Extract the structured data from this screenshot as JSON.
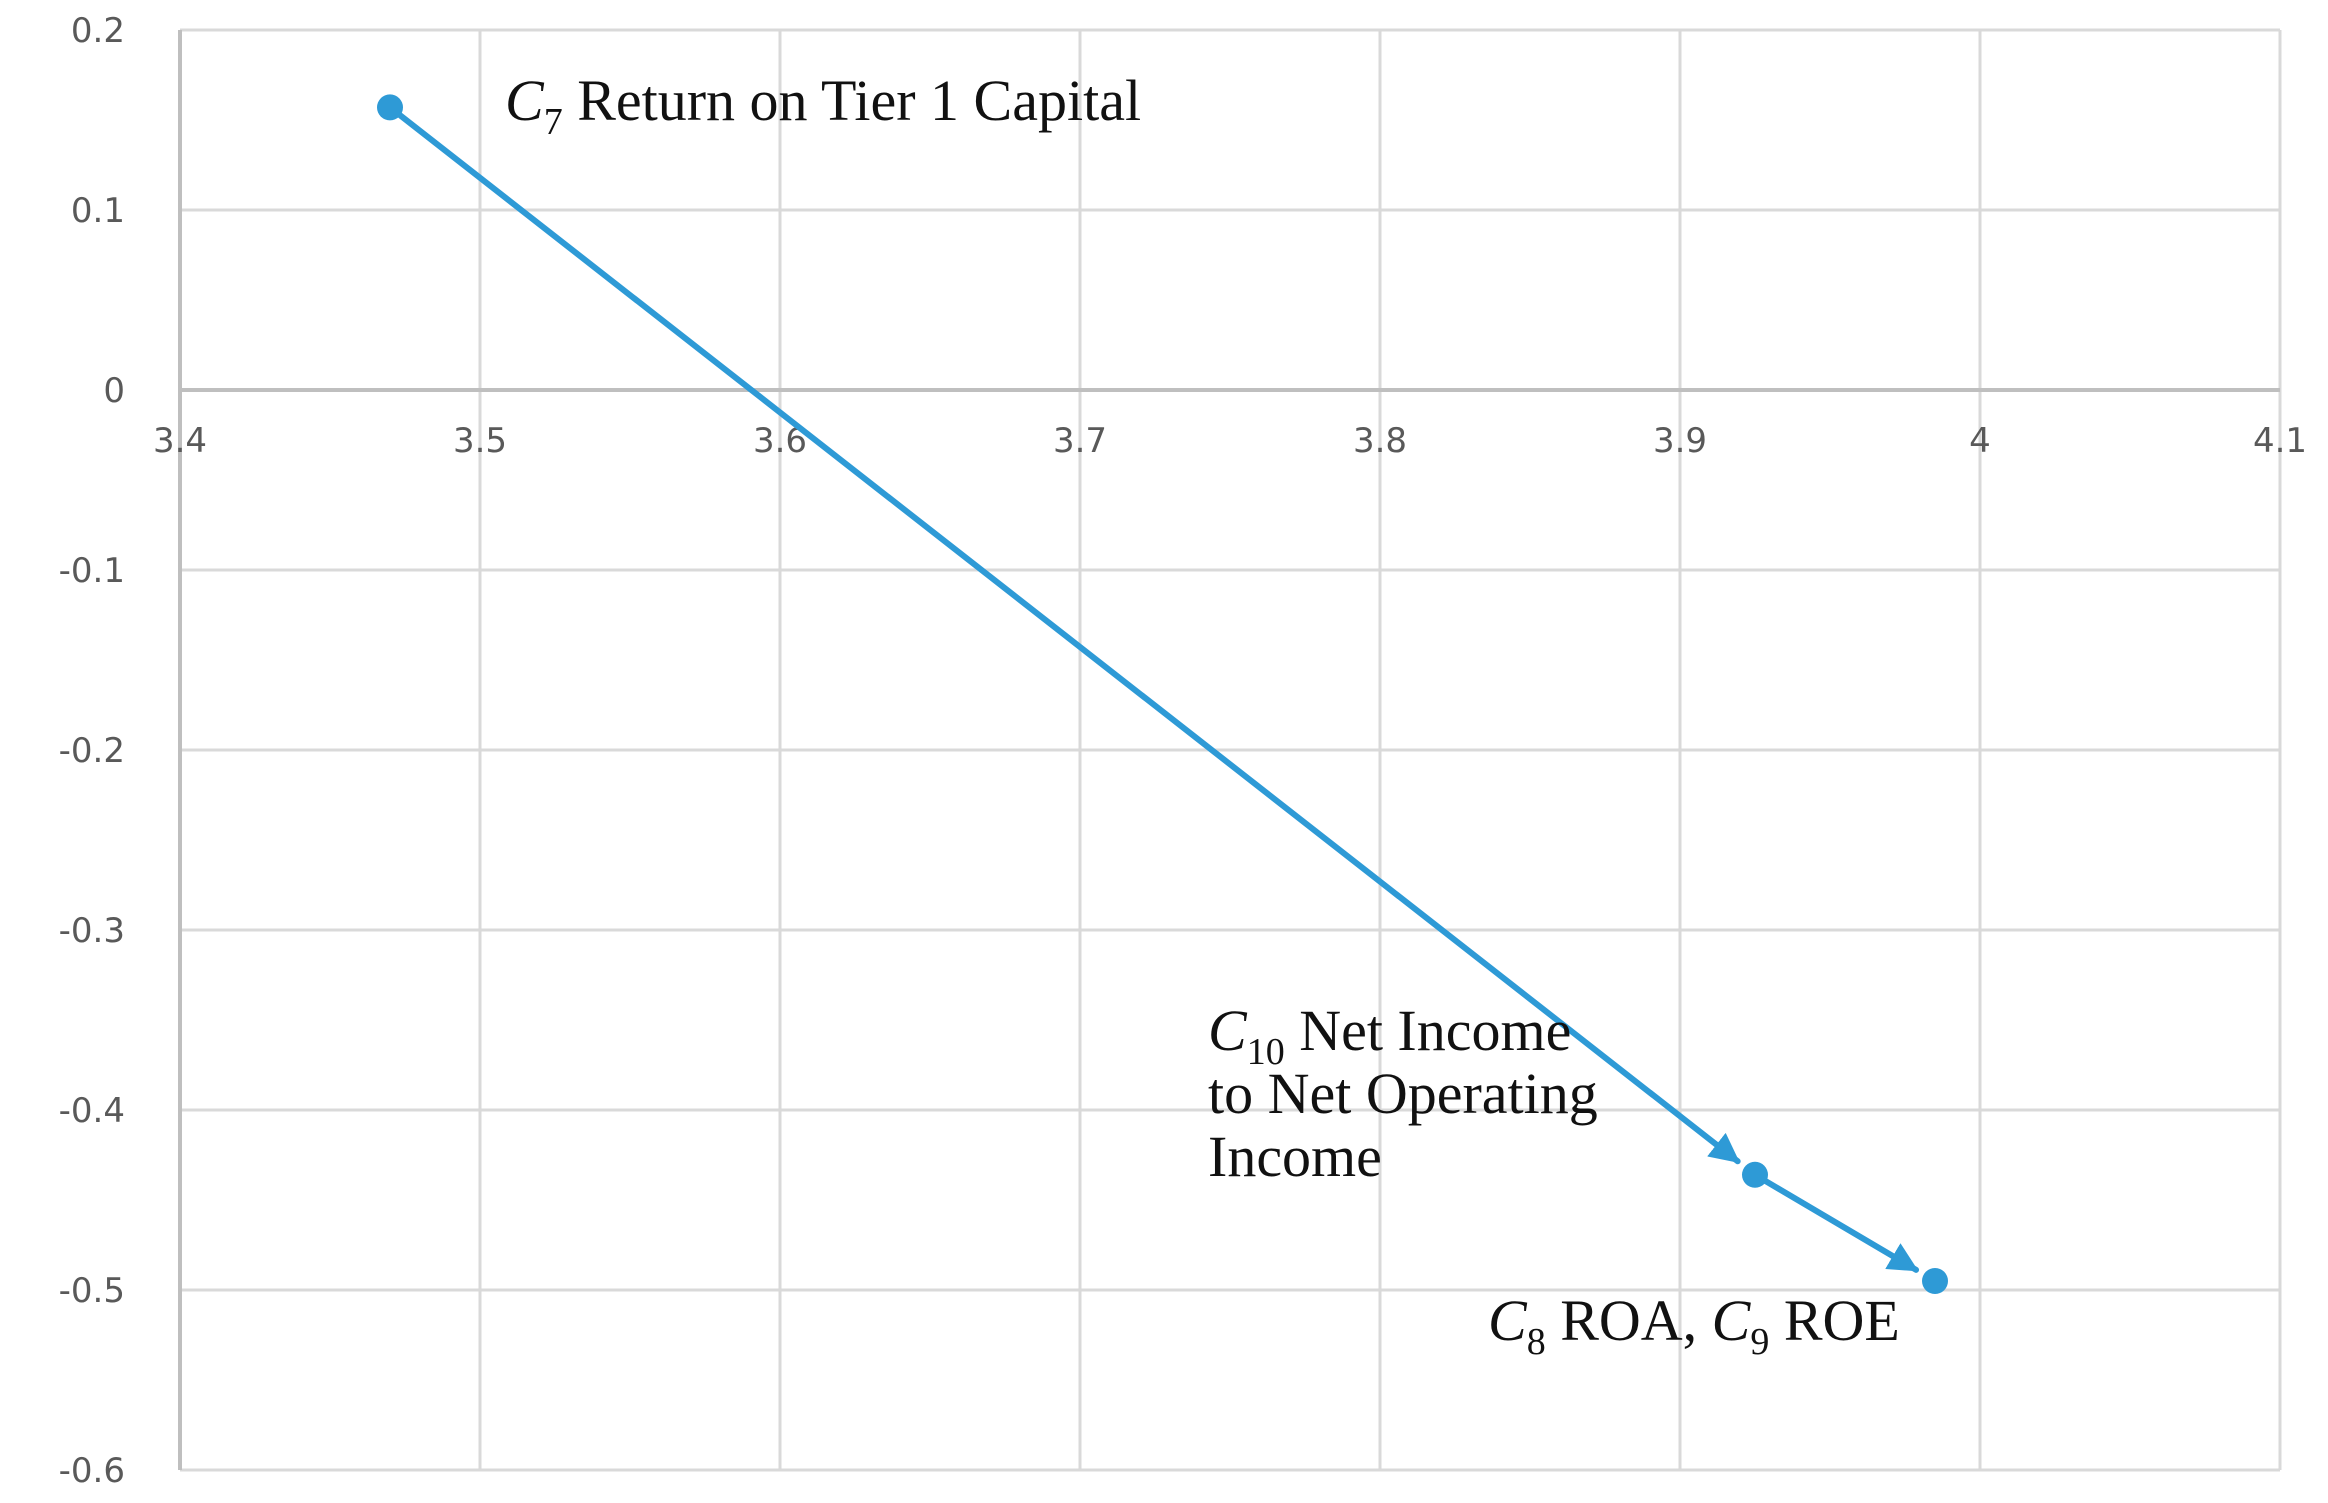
{
  "chart_data": {
    "type": "scatter",
    "mode": "lines+markers+arrows",
    "title": "",
    "xlabel": "",
    "ylabel": "",
    "xlim": [
      3.4,
      4.1
    ],
    "ylim": [
      -0.6,
      0.2
    ],
    "xticks": [
      3.4,
      3.5,
      3.6,
      3.7,
      3.8,
      3.9,
      4.0,
      4.1
    ],
    "xtick_labels": [
      "3.4",
      "3.5",
      "3.6",
      "3.7",
      "3.8",
      "3.9",
      "4",
      "4.1"
    ],
    "yticks": [
      0.2,
      0.1,
      0,
      -0.1,
      -0.2,
      -0.3,
      -0.4,
      -0.5,
      -0.6
    ],
    "ytick_labels": [
      "0.2",
      "0.1",
      "0",
      "-0.1",
      "-0.2",
      "-0.3",
      "-0.4",
      "-0.5",
      "-0.6"
    ],
    "grid": true,
    "series": [
      {
        "color": "#2e9ad6",
        "points": [
          {
            "x": 3.47,
            "y": 0.157
          },
          {
            "x": 3.925,
            "y": -0.436
          },
          {
            "x": 3.985,
            "y": -0.495
          }
        ]
      }
    ],
    "annotations": [
      {
        "symbol": "C",
        "sub": "7",
        "text": " Return on Tier 1 Capital"
      },
      {
        "symbol": "C",
        "sub": "10",
        "text": " Net Income",
        "line2": "to Net Operating",
        "line3": "Income"
      },
      {
        "symbol": "C",
        "sub": "8",
        "text": " ROA, ",
        "symbol2": "C",
        "sub2": "9",
        "text2": " ROE"
      }
    ]
  },
  "colors": {
    "grid": "#d9d9d9",
    "axis": "#bfbfbf",
    "line": "#2e9ad6",
    "tick_text": "#595959",
    "annotation_text": "#111111"
  }
}
